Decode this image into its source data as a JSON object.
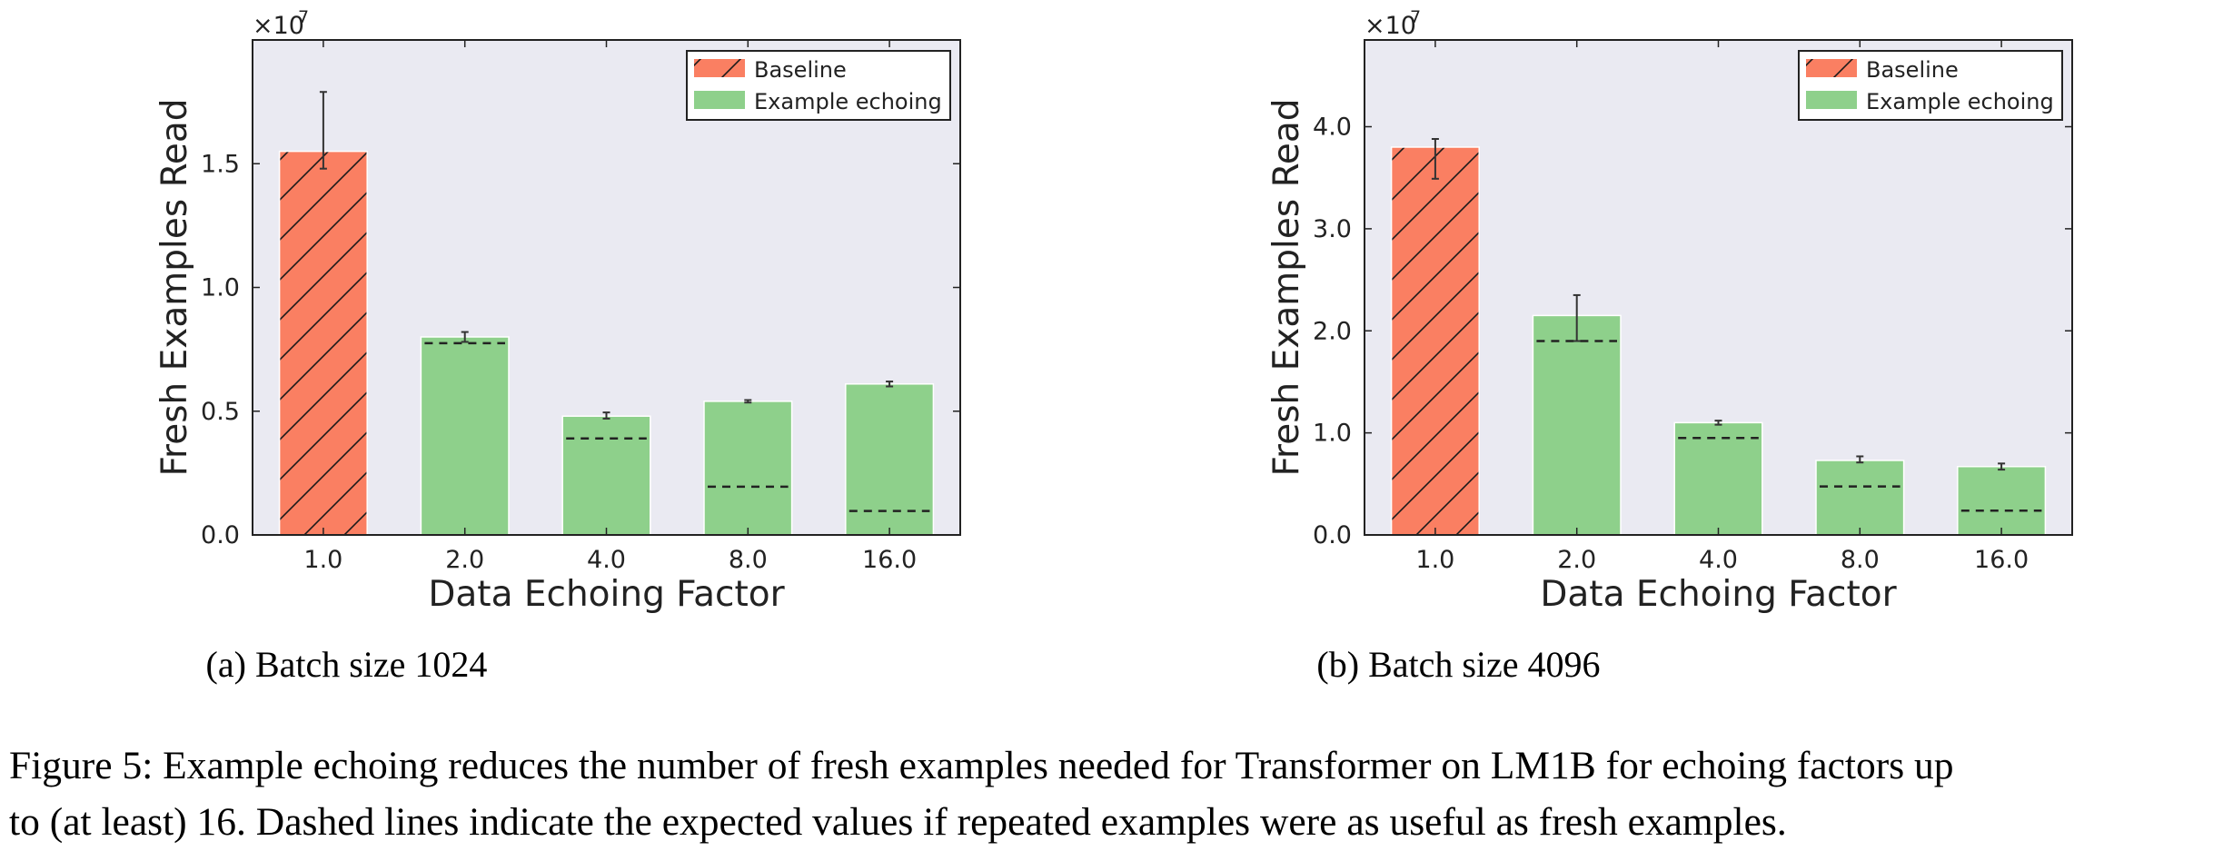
{
  "chart_data": [
    {
      "type": "bar",
      "caption": "(a) Batch size 1024",
      "xlabel": "Data Echoing Factor",
      "ylabel": "Fresh Examples Read",
      "multiplier": "×10",
      "multiplier_exp": "7",
      "categories": [
        "1.0",
        "2.0",
        "4.0",
        "8.0",
        "16.0"
      ],
      "y_ticks": [
        "0.0",
        "0.5",
        "1.0",
        "1.5"
      ],
      "y_tick_values": [
        0,
        0.5,
        1.0,
        1.5
      ],
      "ylim": [
        0,
        2.0
      ],
      "series": [
        {
          "name": "Baseline",
          "values": [
            1.55,
            null,
            null,
            null,
            null
          ],
          "err_low": [
            1.48,
            null,
            null,
            null,
            null
          ],
          "err_high": [
            1.79,
            null,
            null,
            null,
            null
          ]
        },
        {
          "name": "Example echoing",
          "values": [
            null,
            0.8,
            0.48,
            0.54,
            0.61
          ],
          "err_low": [
            null,
            0.78,
            0.47,
            0.535,
            0.6
          ],
          "err_high": [
            null,
            0.82,
            0.495,
            0.545,
            0.62
          ]
        }
      ],
      "expected": [
        null,
        0.775,
        0.39,
        0.195,
        0.097
      ],
      "legend_position": "top-right",
      "grid": false
    },
    {
      "type": "bar",
      "caption": "(b) Batch size 4096",
      "xlabel": "Data Echoing Factor",
      "ylabel": "Fresh Examples Read",
      "multiplier": "×10",
      "multiplier_exp": "7",
      "categories": [
        "1.0",
        "2.0",
        "4.0",
        "8.0",
        "16.0"
      ],
      "y_ticks": [
        "0.0",
        "1.0",
        "2.0",
        "3.0",
        "4.0"
      ],
      "y_tick_values": [
        0,
        1.0,
        2.0,
        3.0,
        4.0
      ],
      "ylim": [
        0,
        4.85
      ],
      "series": [
        {
          "name": "Baseline",
          "values": [
            3.8,
            null,
            null,
            null,
            null
          ],
          "err_low": [
            3.49,
            null,
            null,
            null,
            null
          ],
          "err_high": [
            3.88,
            null,
            null,
            null,
            null
          ]
        },
        {
          "name": "Example echoing",
          "values": [
            null,
            2.15,
            1.1,
            0.73,
            0.67
          ],
          "err_low": [
            null,
            1.9,
            1.08,
            0.71,
            0.64
          ],
          "err_high": [
            null,
            2.35,
            1.12,
            0.77,
            0.7
          ]
        }
      ],
      "expected": [
        null,
        1.9,
        0.95,
        0.475,
        0.2375
      ],
      "legend_position": "top-right",
      "grid": false
    }
  ],
  "colors": {
    "baseline": "#fa7f62",
    "echoing": "#8ed08b",
    "plot_bg": "#eaeaf2",
    "hatch": "#1a1a1a"
  },
  "figure_caption": {
    "line1": "Figure 5: Example echoing reduces the number of fresh examples needed for Transformer on LM1B for echoing factors up",
    "line2": "to (at least) 16. Dashed lines indicate the expected values if repeated examples were as useful as fresh examples."
  }
}
